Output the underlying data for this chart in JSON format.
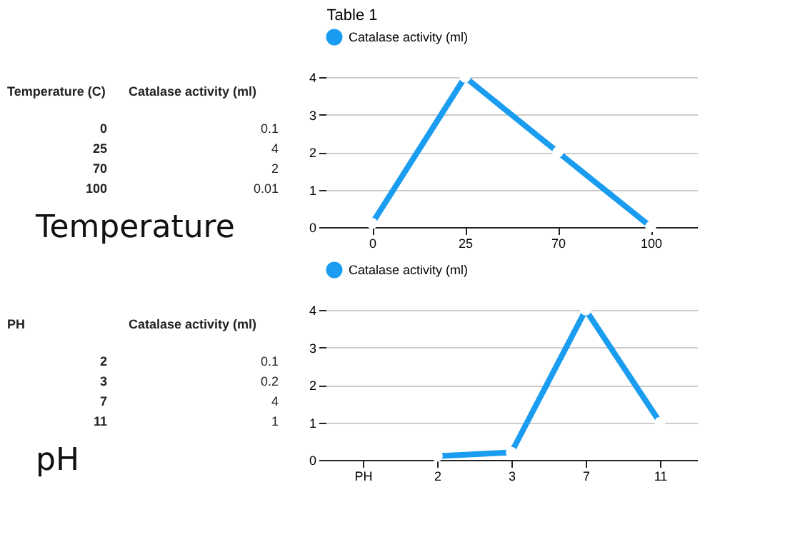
{
  "chart_data": [
    {
      "type": "other",
      "title": "Table 1",
      "annotations": [
        "Temperature (C)",
        "Catalase activity (ml)",
        "0",
        "0.1",
        "25",
        "4",
        "70",
        "2",
        "100",
        "0.01",
        "Temperature"
      ]
    },
    {
      "type": "line",
      "categories": [
        "0",
        "25",
        "70",
        "100"
      ],
      "series": [
        {
          "name": "Catalase activity (ml)",
          "color": "#1a9cf0",
          "values": [
            0.1,
            4,
            2,
            0.01
          ]
        }
      ],
      "ylim": [
        0,
        4
      ],
      "yticks": [
        0,
        1,
        2,
        3,
        4
      ],
      "grid": "y",
      "legend": "top",
      "marker": "circle"
    },
    {
      "type": "other",
      "annotations": [
        "PH",
        "Catalase activity (ml)",
        "2",
        "0.1",
        "3",
        "0.2",
        "7",
        "4",
        "11",
        "1",
        "pH"
      ]
    },
    {
      "type": "line",
      "categories": [
        "PH",
        "2",
        "3",
        "7",
        "11"
      ],
      "series": [
        {
          "name": "Catalase activity (ml)",
          "color": "#1a9cf0",
          "values": [
            null,
            0.1,
            0.2,
            4,
            1
          ]
        }
      ],
      "ylim": [
        0,
        4
      ],
      "yticks": [
        0,
        1,
        2,
        3,
        4
      ],
      "grid": "y",
      "legend": "top",
      "marker": "circle"
    }
  ]
}
